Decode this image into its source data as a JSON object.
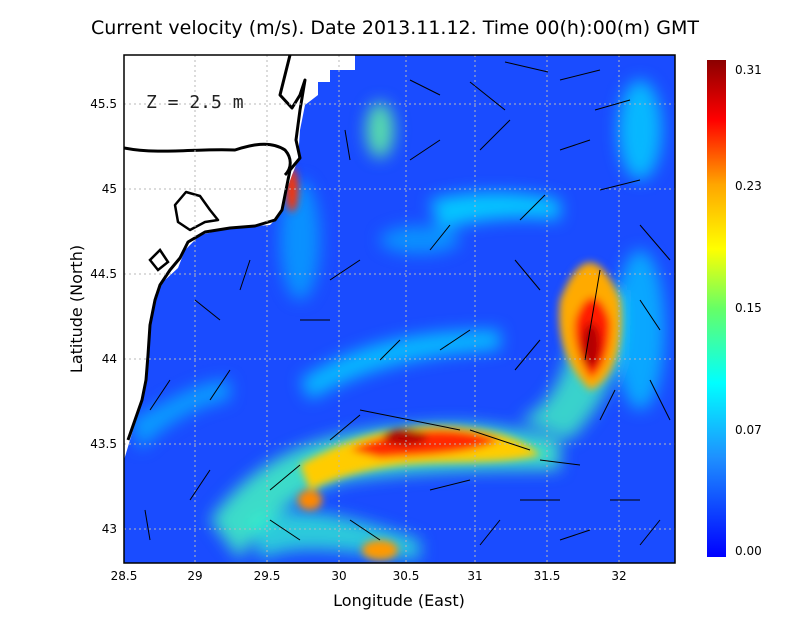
{
  "title": "Current velocity (m/s). Date 2013.11.12. Time 00(h):00(m) GMT",
  "depth_label": "Z = 2.5 m",
  "xlabel": "Longitude (East)",
  "ylabel": "Latitude (North)",
  "x_ticks": [
    "28.5",
    "29",
    "29.5",
    "30",
    "30.5",
    "31",
    "31.5",
    "32"
  ],
  "y_ticks": [
    "45.5",
    "45",
    "44.5",
    "44",
    "43.5",
    "43"
  ],
  "colorbar": {
    "ticks": [
      "0.31",
      "0.23",
      "0.15",
      "0.07",
      "0.00"
    ],
    "colors": [
      "#8b0000",
      "#ff0000",
      "#ffa500",
      "#ffff00",
      "#66ff66",
      "#00ffff",
      "#1e90ff",
      "#0000ff"
    ]
  },
  "chart_data": {
    "type": "heatmap",
    "title": "Current velocity (m/s). Date 2013.11.12. Time 00(h):00(m) GMT",
    "xlabel": "Longitude (East)",
    "ylabel": "Latitude (North)",
    "xlim": [
      28.5,
      32.4
    ],
    "ylim": [
      42.8,
      45.8
    ],
    "zlim": [
      0.0,
      0.31
    ],
    "grid": true,
    "hotspots": [
      {
        "lon": 30.6,
        "lat": 43.55,
        "value": 0.3
      },
      {
        "lon": 31.8,
        "lat": 44.1,
        "value": 0.31
      },
      {
        "lon": 29.65,
        "lat": 44.98,
        "value": 0.28
      }
    ]
  }
}
